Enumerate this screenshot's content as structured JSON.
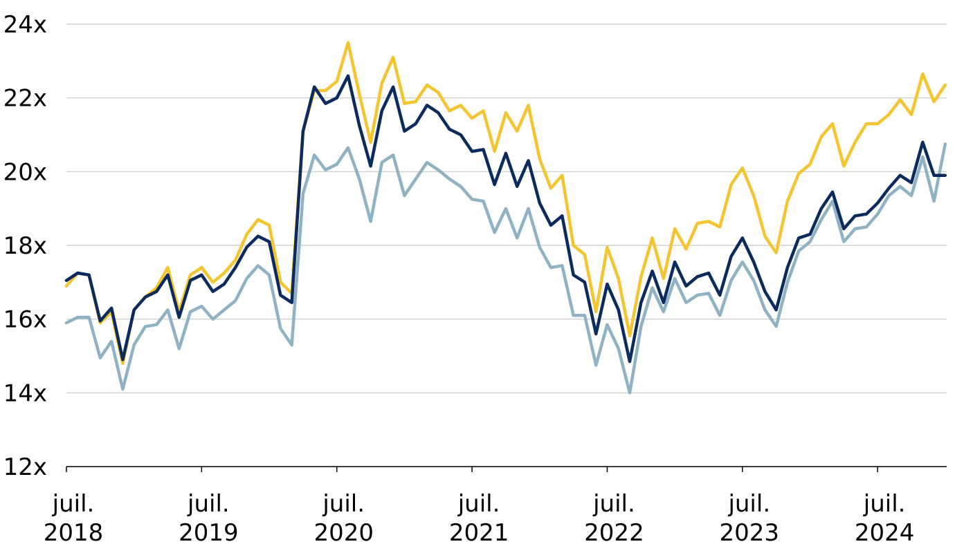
{
  "chart_data": {
    "type": "line",
    "title": "",
    "xlabel": "",
    "ylabel": "",
    "ylim": [
      12,
      24
    ],
    "y_ticks": [
      {
        "value": 12,
        "label": "12x"
      },
      {
        "value": 14,
        "label": "14x"
      },
      {
        "value": 16,
        "label": "16x"
      },
      {
        "value": 18,
        "label": "18x"
      },
      {
        "value": 20,
        "label": "20x"
      },
      {
        "value": 22,
        "label": "22x"
      },
      {
        "value": 24,
        "label": "24x"
      }
    ],
    "x_start": "2018-07",
    "x_ticks": [
      {
        "month": "2018-07",
        "line1": "juil.",
        "line2": "2018"
      },
      {
        "month": "2019-07",
        "line1": "juil.",
        "line2": "2019"
      },
      {
        "month": "2020-07",
        "line1": "juil.",
        "line2": "2020"
      },
      {
        "month": "2021-07",
        "line1": "juil.",
        "line2": "2021"
      },
      {
        "month": "2022-07",
        "line1": "juil.",
        "line2": "2022"
      },
      {
        "month": "2023-07",
        "line1": "juil.",
        "line2": "2023"
      },
      {
        "month": "2024-07",
        "line1": "juil.",
        "line2": "2024"
      }
    ],
    "grid": true,
    "legend": "none",
    "series": [
      {
        "color": "#8fb2c4",
        "values": [
          15.9,
          16.05,
          16.05,
          14.95,
          15.4,
          14.1,
          15.3,
          15.8,
          15.85,
          16.25,
          15.2,
          16.2,
          16.35,
          16.0,
          16.25,
          16.5,
          17.1,
          17.45,
          17.2,
          15.75,
          15.3,
          19.4,
          20.45,
          20.05,
          20.2,
          20.65,
          19.8,
          18.65,
          20.25,
          20.45,
          19.35,
          19.8,
          20.25,
          20.05,
          19.8,
          19.6,
          19.25,
          19.2,
          18.35,
          19.0,
          18.2,
          19.0,
          17.95,
          17.4,
          17.45,
          16.1,
          16.1,
          14.75,
          15.85,
          15.2,
          14.0,
          15.8,
          16.85,
          16.2,
          17.1,
          16.45,
          16.65,
          16.7,
          16.1,
          17.05,
          17.55,
          17.05,
          16.25,
          15.8,
          17.0,
          17.85,
          18.1,
          18.7,
          19.2,
          18.1,
          18.45,
          18.5,
          18.85,
          19.35,
          19.6,
          19.35,
          20.4,
          19.2,
          20.75
        ]
      },
      {
        "color": "#f4c531",
        "values": [
          16.9,
          17.25,
          17.2,
          15.9,
          16.2,
          14.8,
          16.25,
          16.6,
          16.85,
          17.4,
          16.2,
          17.2,
          17.4,
          17.0,
          17.25,
          17.6,
          18.3,
          18.7,
          18.55,
          17.0,
          16.7,
          21.1,
          22.2,
          22.2,
          22.45,
          23.5,
          22.1,
          20.8,
          22.4,
          23.1,
          21.85,
          21.9,
          22.35,
          22.15,
          21.65,
          21.8,
          21.45,
          21.65,
          20.55,
          21.6,
          21.1,
          21.8,
          20.35,
          19.55,
          19.9,
          18.0,
          17.75,
          16.2,
          17.95,
          17.1,
          15.55,
          17.15,
          18.2,
          17.1,
          18.45,
          17.9,
          18.6,
          18.65,
          18.5,
          19.65,
          20.1,
          19.35,
          18.25,
          17.8,
          19.2,
          19.95,
          20.2,
          20.95,
          21.3,
          20.15,
          20.8,
          21.3,
          21.3,
          21.55,
          21.95,
          21.55,
          22.65,
          21.9,
          22.35
        ]
      },
      {
        "color": "#0b2a5e",
        "values": [
          17.05,
          17.25,
          17.2,
          15.95,
          16.3,
          14.9,
          16.25,
          16.6,
          16.75,
          17.2,
          16.05,
          17.05,
          17.2,
          16.75,
          16.95,
          17.4,
          17.95,
          18.25,
          18.1,
          16.65,
          16.45,
          21.1,
          22.3,
          21.85,
          22.0,
          22.6,
          21.25,
          20.15,
          21.65,
          22.3,
          21.1,
          21.3,
          21.8,
          21.6,
          21.15,
          21.0,
          20.55,
          20.6,
          19.65,
          20.5,
          19.6,
          20.3,
          19.15,
          18.55,
          18.8,
          17.2,
          17.0,
          15.6,
          16.95,
          16.25,
          14.85,
          16.45,
          17.3,
          16.45,
          17.55,
          16.9,
          17.15,
          17.25,
          16.65,
          17.7,
          18.2,
          17.55,
          16.75,
          16.25,
          17.4,
          18.2,
          18.3,
          19.0,
          19.45,
          18.45,
          18.8,
          18.85,
          19.15,
          19.55,
          19.9,
          19.7,
          20.8,
          19.9,
          19.9
        ]
      }
    ]
  }
}
